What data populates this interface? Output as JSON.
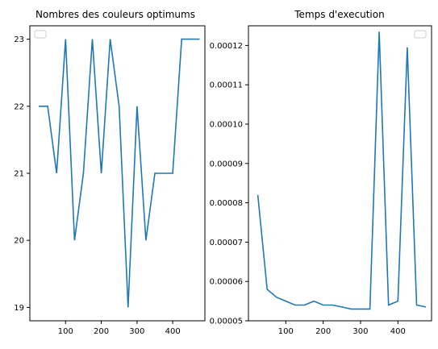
{
  "chart_data": [
    {
      "type": "line",
      "title": "Nombres des couleurs optimums",
      "x": [
        25,
        50,
        75,
        100,
        125,
        150,
        175,
        200,
        225,
        250,
        275,
        300,
        325,
        350,
        375,
        400,
        425,
        450,
        475
      ],
      "series": [
        {
          "color": "#1f77b4",
          "values": [
            22,
            22,
            21,
            23,
            20,
            21,
            23,
            21,
            23,
            22,
            19,
            22,
            20,
            21,
            21,
            21,
            23,
            23,
            23
          ]
        }
      ],
      "xlim": [
        0,
        490
      ],
      "ylim": [
        18.8,
        23.2
      ],
      "x_ticks": [
        100,
        200,
        300,
        400
      ],
      "y_ticks": [
        19,
        20,
        21,
        22,
        23
      ],
      "legend": "top-left",
      "grid": false
    },
    {
      "type": "line",
      "title": "Temps d'execution",
      "x": [
        25,
        50,
        75,
        100,
        125,
        150,
        175,
        200,
        225,
        250,
        275,
        300,
        325,
        350,
        375,
        400,
        425,
        450,
        475
      ],
      "series": [
        {
          "color": "#1f77b4",
          "values": [
            8.2e-05,
            5.8e-05,
            5.6e-05,
            5.5e-05,
            5.4e-05,
            5.4e-05,
            5.5e-05,
            5.4e-05,
            5.4e-05,
            5.35e-05,
            5.3e-05,
            5.3e-05,
            5.3e-05,
            0.0001235,
            5.4e-05,
            5.5e-05,
            0.0001195,
            5.4e-05,
            5.35e-05
          ]
        }
      ],
      "xlim": [
        0,
        490
      ],
      "ylim": [
        5e-05,
        0.000125
      ],
      "x_ticks": [
        100,
        200,
        300,
        400
      ],
      "y_ticks": [
        "0.00005",
        "0.00006",
        "0.00007",
        "0.00008",
        "0.00009",
        "0.00010",
        "0.00011",
        "0.00012"
      ],
      "legend": "top-right",
      "grid": false
    }
  ]
}
